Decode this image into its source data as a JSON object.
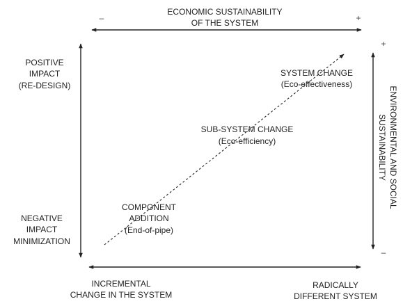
{
  "top_axis": {
    "title_line1": "ECONOMIC SUSTAINABILITY",
    "title_line2": "OF THE SYSTEM",
    "minus": "–",
    "plus": "+"
  },
  "right_axis": {
    "title_line1": "ENVIRONMENTAL AND SOCIAL",
    "title_line2": "SUSTAINABILITY",
    "plus": "+",
    "minus": "–"
  },
  "left_labels": {
    "positive": [
      "POSITIVE",
      "IMPACT",
      "(RE-DESIGN)"
    ],
    "negative": [
      "NEGATIVE",
      "IMPACT",
      "MINIMIZATION"
    ]
  },
  "bottom_labels": {
    "incremental": [
      "INCREMENTAL",
      "CHANGE IN THE SYSTEM"
    ],
    "radical": [
      "RADICALLY",
      "DIFFERENT SYSTEM"
    ]
  },
  "stages": {
    "system_change": [
      "SYSTEM CHANGE",
      "(Eco-effectiveness)"
    ],
    "sub_system_change": [
      "SUB-SYSTEM CHANGE",
      "(Eco-efficiency)"
    ],
    "component_addition": [
      "COMPONENT",
      "ADDITION",
      "(End-of-pipe)"
    ]
  }
}
